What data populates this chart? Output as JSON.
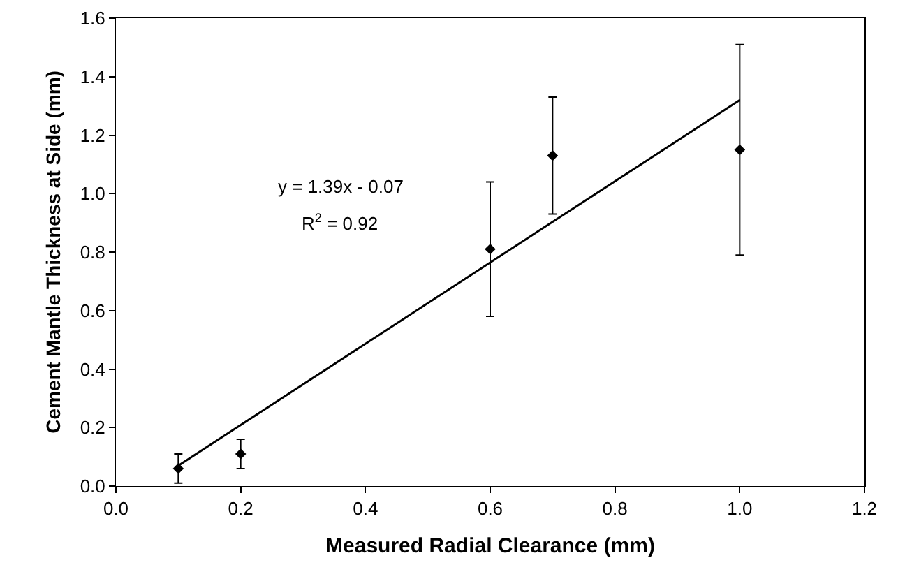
{
  "chart_data": {
    "type": "scatter",
    "xlabel": "Measured Radial Clearance (mm)",
    "ylabel": "Cement Mantle Thickness at Side (mm)",
    "xlim": [
      0,
      1.2
    ],
    "xticks": [
      {
        "value": 0,
        "label": "0.0"
      },
      {
        "value": 0.2,
        "label": "0.2"
      },
      {
        "value": 0.4,
        "label": "0.4"
      },
      {
        "value": 0.6,
        "label": "0.6"
      },
      {
        "value": 0.8,
        "label": "0.8"
      },
      {
        "value": 1,
        "label": "1.0"
      },
      {
        "value": 1.2,
        "label": "1.2"
      }
    ],
    "ylim": [
      0,
      1.6
    ],
    "yticks": [
      {
        "value": 0,
        "label": "0.0"
      },
      {
        "value": 0.2,
        "label": "0.2"
      },
      {
        "value": 0.4,
        "label": "0.4"
      },
      {
        "value": 0.6,
        "label": "0.6"
      },
      {
        "value": 0.8,
        "label": "0.8"
      },
      {
        "value": 1,
        "label": "1.0"
      },
      {
        "value": 1.2,
        "label": "1.2"
      },
      {
        "value": 1.4,
        "label": "1.4"
      },
      {
        "value": 1.6,
        "label": "1.6"
      }
    ],
    "series": [
      {
        "color": "#000000",
        "marker": "diamond",
        "x": [
          0.1,
          0.2,
          0.6,
          0.7,
          1.0
        ],
        "values": [
          0.06,
          0.11,
          0.81,
          1.13,
          1.15
        ],
        "errors": [
          0.05,
          0.05,
          0.23,
          0.2,
          0.36
        ]
      },
      {
        "type": "line",
        "color": "#000000",
        "marker": "none",
        "x": [
          0.1,
          1.0
        ],
        "values": [
          0.07,
          1.32
        ]
      }
    ],
    "annotations": [
      "y = 1.39x - 0.07",
      "R$^{2}$ = 0.92"
    ]
  }
}
